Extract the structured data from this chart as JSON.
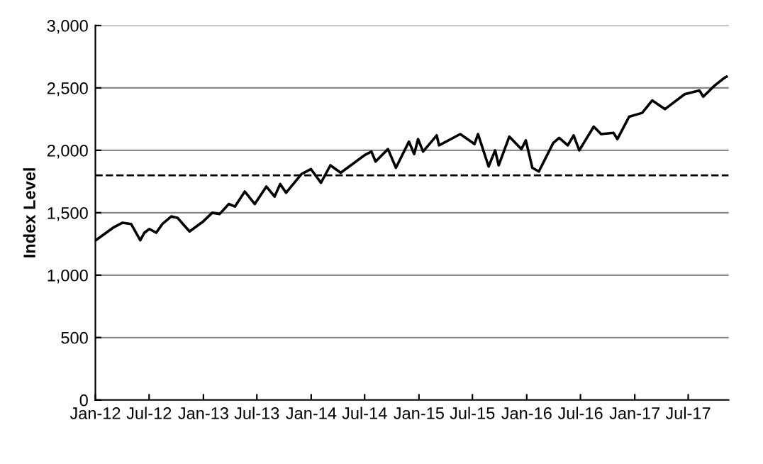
{
  "chart_data": {
    "type": "line",
    "ylabel": "Index Level",
    "x": [
      "2012-01-03",
      "2012-02-01",
      "2012-03-01",
      "2012-04-02",
      "2012-05-01",
      "2012-06-01",
      "2012-06-15",
      "2012-07-02",
      "2012-07-25",
      "2012-08-15",
      "2012-09-14",
      "2012-10-05",
      "2012-11-15",
      "2012-12-31",
      "2013-01-31",
      "2013-02-25",
      "2013-03-28",
      "2013-04-18",
      "2013-05-21",
      "2013-06-24",
      "2013-08-02",
      "2013-08-30",
      "2013-09-18",
      "2013-10-08",
      "2013-11-29",
      "2013-12-31",
      "2014-02-03",
      "2014-03-07",
      "2014-04-11",
      "2014-06-30",
      "2014-07-24",
      "2014-08-07",
      "2014-09-18",
      "2014-10-15",
      "2014-11-28",
      "2014-12-16",
      "2014-12-29",
      "2015-01-15",
      "2015-03-02",
      "2015-03-10",
      "2015-05-21",
      "2015-07-08",
      "2015-07-20",
      "2015-08-25",
      "2015-09-16",
      "2015-09-28",
      "2015-11-03",
      "2015-12-14",
      "2015-12-29",
      "2016-01-20",
      "2016-02-11",
      "2016-03-31",
      "2016-04-20",
      "2016-05-19",
      "2016-06-08",
      "2016-06-27",
      "2016-08-15",
      "2016-09-09",
      "2016-10-21",
      "2016-11-03",
      "2016-12-13",
      "2017-01-26",
      "2017-03-01",
      "2017-04-13",
      "2017-06-19",
      "2017-08-08",
      "2017-08-21",
      "2017-09-29",
      "2017-10-31",
      "2017-11-08"
    ],
    "series": [
      {
        "color": "#000000",
        "values": [
          1280,
          1330,
          1380,
          1420,
          1410,
          1280,
          1340,
          1370,
          1340,
          1410,
          1470,
          1460,
          1350,
          1430,
          1500,
          1490,
          1570,
          1550,
          1670,
          1570,
          1710,
          1630,
          1730,
          1660,
          1810,
          1850,
          1740,
          1880,
          1820,
          1960,
          1990,
          1910,
          2010,
          1860,
          2070,
          1970,
          2090,
          1990,
          2120,
          2040,
          2130,
          2050,
          2130,
          1870,
          2000,
          1880,
          2110,
          2010,
          2080,
          1860,
          1830,
          2060,
          2100,
          2040,
          2120,
          2000,
          2190,
          2130,
          2140,
          2090,
          2270,
          2300,
          2400,
          2330,
          2450,
          2480,
          2430,
          2520,
          2580,
          2590
        ]
      }
    ],
    "xlim": [
      "2012-01-01",
      "2017-11-15"
    ],
    "xticks": [
      {
        "value": "2012-01-01",
        "label": "Jan-12"
      },
      {
        "value": "2012-07-01",
        "label": "Jul-12"
      },
      {
        "value": "2013-01-01",
        "label": "Jan-13"
      },
      {
        "value": "2013-07-01",
        "label": "Jul-13"
      },
      {
        "value": "2014-01-01",
        "label": "Jan-14"
      },
      {
        "value": "2014-07-01",
        "label": "Jul-14"
      },
      {
        "value": "2015-01-01",
        "label": "Jan-15"
      },
      {
        "value": "2015-07-01",
        "label": "Jul-15"
      },
      {
        "value": "2016-01-01",
        "label": "Jan-16"
      },
      {
        "value": "2016-07-01",
        "label": "Jul-16"
      },
      {
        "value": "2017-01-01",
        "label": "Jan-17"
      },
      {
        "value": "2017-07-01",
        "label": "Jul-17"
      }
    ],
    "ylim": [
      0,
      3000
    ],
    "yticks": [
      {
        "value": 0,
        "label": "0"
      },
      {
        "value": 500,
        "label": "500"
      },
      {
        "value": 1000,
        "label": "1,000"
      },
      {
        "value": 1500,
        "label": "1,500"
      },
      {
        "value": 2000,
        "label": "2,000"
      },
      {
        "value": 2500,
        "label": "2,500"
      },
      {
        "value": 3000,
        "label": "3,000"
      }
    ],
    "grid": "y",
    "line_style": "solid",
    "ref_lines": [
      {
        "axis": "y",
        "value": 1800,
        "line_style": "dashed",
        "color": "#000000"
      }
    ]
  }
}
